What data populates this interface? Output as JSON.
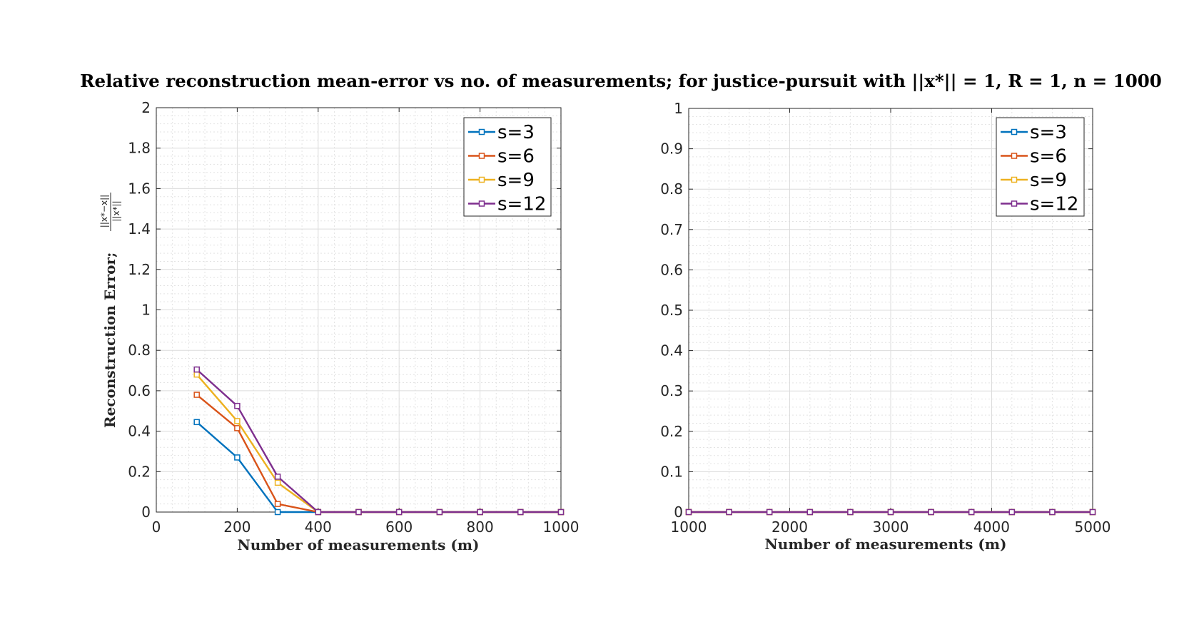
{
  "figure": {
    "title": "Relative reconstruction mean-error vs no. of measurements; for justice-pursuit with ||x*|| = 1, R = 1, n = 1000"
  },
  "chart_data": [
    {
      "type": "line",
      "ylabel_main": "Reconstruction Error;",
      "ylabel_frac_num": "||x*−x||",
      "ylabel_frac_den": "||x*||",
      "xlabel": "Number of measurements (m)",
      "xlim": [
        0,
        1000
      ],
      "ylim": [
        0,
        2
      ],
      "xticks": [
        0,
        200,
        400,
        600,
        800,
        1000
      ],
      "xtick_labels": [
        "0",
        "200",
        "400",
        "600",
        "800",
        "1000"
      ],
      "yticks": [
        0,
        0.2,
        0.4,
        0.6,
        0.8,
        1,
        1.2,
        1.4,
        1.6,
        1.8,
        2
      ],
      "ytick_labels": [
        "0",
        "0.2",
        "0.4",
        "0.6",
        "0.8",
        "1",
        "1.2",
        "1.4",
        "1.6",
        "1.8",
        "2"
      ],
      "grid": true,
      "minor_grid": true,
      "legend_position": "top-right",
      "x": [
        100,
        200,
        300,
        400,
        500,
        600,
        700,
        800,
        900,
        1000
      ],
      "series": [
        {
          "name": "s=3",
          "color": "#0072BD",
          "values": [
            0.445,
            0.27,
            0.0,
            0.0,
            0.0,
            0.0,
            0.0,
            0.0,
            0.0,
            0.0
          ]
        },
        {
          "name": "s=6",
          "color": "#D95319",
          "values": [
            0.58,
            0.415,
            0.04,
            0.0,
            0.0,
            0.0,
            0.0,
            0.0,
            0.0,
            0.0
          ]
        },
        {
          "name": "s=9",
          "color": "#EDB120",
          "values": [
            0.68,
            0.45,
            0.145,
            0.0,
            0.0,
            0.0,
            0.0,
            0.0,
            0.0,
            0.0
          ]
        },
        {
          "name": "s=12",
          "color": "#7E2F8E",
          "values": [
            0.705,
            0.525,
            0.175,
            0.0,
            0.0,
            0.0,
            0.0,
            0.0,
            0.0,
            0.0
          ]
        }
      ]
    },
    {
      "type": "line",
      "xlabel": "Number of measurements (m)",
      "xlim": [
        1000,
        5000
      ],
      "ylim": [
        0,
        1
      ],
      "xticks": [
        1000,
        2000,
        3000,
        4000,
        5000
      ],
      "xtick_labels": [
        "1000",
        "2000",
        "3000",
        "4000",
        "5000"
      ],
      "yticks": [
        0,
        0.1,
        0.2,
        0.3,
        0.4,
        0.5,
        0.6,
        0.7,
        0.8,
        0.9,
        1
      ],
      "ytick_labels": [
        "0",
        "0.1",
        "0.2",
        "0.3",
        "0.4",
        "0.5",
        "0.6",
        "0.7",
        "0.8",
        "0.9",
        "1"
      ],
      "grid": true,
      "minor_grid": true,
      "legend_position": "top-right",
      "x": [
        1000,
        1400,
        1800,
        2200,
        2600,
        3000,
        3400,
        3800,
        4200,
        4600,
        5000
      ],
      "series": [
        {
          "name": "s=3",
          "color": "#0072BD",
          "values": [
            0,
            0,
            0,
            0,
            0,
            0,
            0,
            0,
            0,
            0,
            0
          ]
        },
        {
          "name": "s=6",
          "color": "#D95319",
          "values": [
            0,
            0,
            0,
            0,
            0,
            0,
            0,
            0,
            0,
            0,
            0
          ]
        },
        {
          "name": "s=9",
          "color": "#EDB120",
          "values": [
            0,
            0,
            0,
            0,
            0,
            0,
            0,
            0,
            0,
            0,
            0
          ]
        },
        {
          "name": "s=12",
          "color": "#7E2F8E",
          "values": [
            0,
            0,
            0,
            0,
            0,
            0,
            0,
            0,
            0,
            0,
            0
          ]
        }
      ]
    }
  ]
}
